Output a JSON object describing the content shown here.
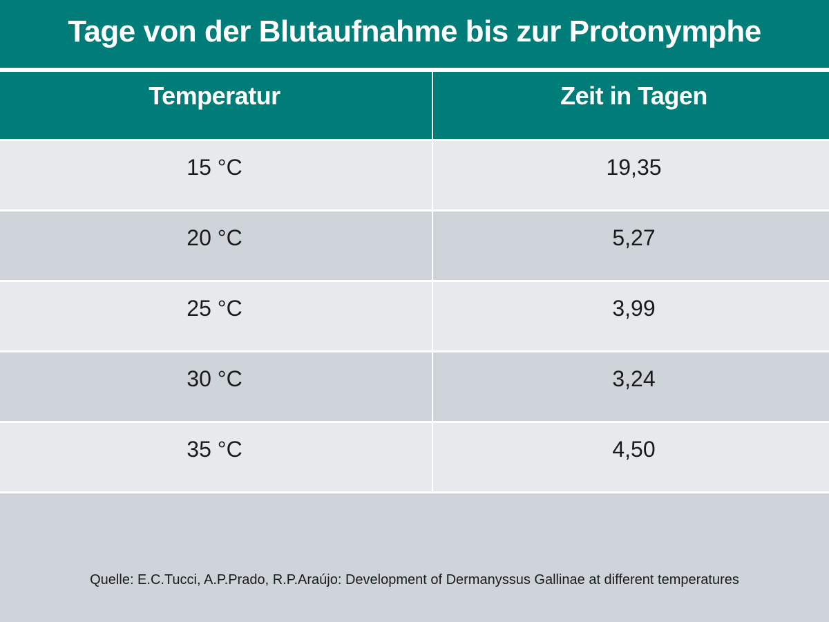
{
  "title": "Tage von der Blutaufnahme bis zur Protonymphe",
  "table": {
    "headers": [
      "Temperatur",
      "Zeit in Tagen"
    ],
    "rows": [
      [
        "15 °C",
        "19,35"
      ],
      [
        "20 °C",
        "5,27"
      ],
      [
        "25 °C",
        "3,99"
      ],
      [
        "30 °C",
        "3,24"
      ],
      [
        "35 °C",
        "4,50"
      ]
    ]
  },
  "source": "Quelle:  E.C.Tucci, A.P.Prado, R.P.Araújo: Development of Dermanyssus Gallinae at different temperatures",
  "colors": {
    "header_teal": "#007d79",
    "row_light": "#e7eaed",
    "row_dark": "#cfd4db"
  }
}
